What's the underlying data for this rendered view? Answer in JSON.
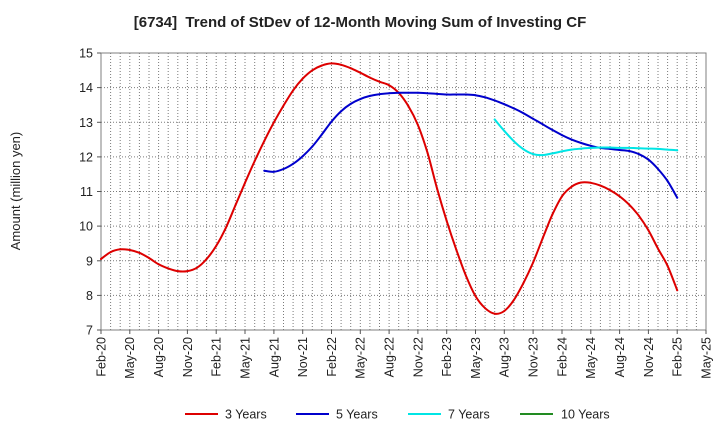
{
  "chart_data": {
    "type": "line",
    "title": "[6734]  Trend of StDev of 12-Month Moving Sum of Investing CF",
    "ylabel": "Amount (million yen)",
    "ylim": [
      7,
      15
    ],
    "yticks": [
      7,
      8,
      9,
      10,
      11,
      12,
      13,
      14,
      15
    ],
    "xlim": [
      "Feb-20",
      "May-25"
    ],
    "xticks": [
      "Feb-20",
      "May-20",
      "Aug-20",
      "Nov-20",
      "Feb-21",
      "May-21",
      "Aug-21",
      "Nov-21",
      "Feb-22",
      "May-22",
      "Aug-22",
      "Nov-22",
      "Feb-23",
      "May-23",
      "Aug-23",
      "Nov-23",
      "Feb-24",
      "May-24",
      "Aug-24",
      "Nov-24",
      "Feb-25",
      "May-25"
    ],
    "grid": true,
    "legend_position": "bottom",
    "series": [
      {
        "name": "3 Years",
        "color": "#dd0000",
        "x": [
          "Feb-20",
          "Mar-20",
          "Apr-20",
          "May-20",
          "Jun-20",
          "Jul-20",
          "Aug-20",
          "Sep-20",
          "Oct-20",
          "Nov-20",
          "Dec-20",
          "Jan-21",
          "Feb-21",
          "Mar-21",
          "Apr-21",
          "May-21",
          "Jun-21",
          "Jul-21",
          "Aug-21",
          "Sep-21",
          "Oct-21",
          "Nov-21",
          "Dec-21",
          "Jan-22",
          "Feb-22",
          "Mar-22",
          "Apr-22",
          "May-22",
          "Jun-22",
          "Jul-22",
          "Aug-22",
          "Sep-22",
          "Oct-22",
          "Nov-22",
          "Dec-22",
          "Jan-23",
          "Feb-23",
          "Mar-23",
          "Apr-23",
          "May-23",
          "Jun-23",
          "Jul-23",
          "Aug-23",
          "Sep-23",
          "Oct-23",
          "Nov-23",
          "Dec-23",
          "Jan-24",
          "Feb-24",
          "Mar-24",
          "Apr-24",
          "May-24",
          "Jun-24",
          "Jul-24",
          "Aug-24",
          "Sep-24",
          "Oct-24",
          "Nov-24",
          "Dec-24",
          "Jan-25",
          "Feb-25"
        ],
        "values": [
          9.05,
          9.25,
          9.33,
          9.31,
          9.23,
          9.08,
          8.9,
          8.78,
          8.7,
          8.7,
          8.8,
          9.05,
          9.43,
          9.95,
          10.6,
          11.25,
          11.88,
          12.46,
          13.0,
          13.48,
          13.92,
          14.26,
          14.5,
          14.64,
          14.7,
          14.66,
          14.56,
          14.43,
          14.29,
          14.17,
          14.07,
          13.85,
          13.47,
          12.92,
          12.12,
          11.08,
          10.15,
          9.32,
          8.57,
          7.98,
          7.63,
          7.47,
          7.55,
          7.87,
          8.36,
          8.95,
          9.65,
          10.33,
          10.86,
          11.14,
          11.26,
          11.25,
          11.17,
          11.04,
          10.86,
          10.62,
          10.3,
          9.88,
          9.35,
          8.85,
          8.15
        ]
      },
      {
        "name": "5 Years",
        "color": "#0000cc",
        "x": [
          "Jul-21",
          "Aug-21",
          "Sep-21",
          "Oct-21",
          "Nov-21",
          "Dec-21",
          "Jan-22",
          "Feb-22",
          "Mar-22",
          "Apr-22",
          "May-22",
          "Jun-22",
          "Jul-22",
          "Aug-22",
          "Sep-22",
          "Oct-22",
          "Nov-22",
          "Dec-22",
          "Jan-23",
          "Feb-23",
          "Mar-23",
          "Apr-23",
          "May-23",
          "Jun-23",
          "Jul-23",
          "Aug-23",
          "Sep-23",
          "Oct-23",
          "Nov-23",
          "Dec-23",
          "Jan-24",
          "Feb-24",
          "Mar-24",
          "Apr-24",
          "May-24",
          "Jun-24",
          "Jul-24",
          "Aug-24",
          "Sep-24",
          "Oct-24",
          "Nov-24",
          "Dec-24",
          "Jan-25",
          "Feb-25"
        ],
        "values": [
          11.6,
          11.57,
          11.65,
          11.8,
          12.02,
          12.3,
          12.65,
          13.02,
          13.32,
          13.53,
          13.67,
          13.76,
          13.81,
          13.84,
          13.85,
          13.85,
          13.85,
          13.84,
          13.82,
          13.8,
          13.8,
          13.8,
          13.78,
          13.72,
          13.63,
          13.52,
          13.4,
          13.26,
          13.1,
          12.94,
          12.78,
          12.63,
          12.5,
          12.4,
          12.32,
          12.26,
          12.23,
          12.2,
          12.17,
          12.08,
          11.92,
          11.65,
          11.3,
          10.82
        ]
      },
      {
        "name": "7 Years",
        "color": "#00e5e5",
        "x": [
          "Jul-23",
          "Aug-23",
          "Sep-23",
          "Oct-23",
          "Nov-23",
          "Dec-23",
          "Jan-24",
          "Feb-24",
          "Mar-24",
          "Apr-24",
          "May-24",
          "Jun-24",
          "Jul-24",
          "Aug-24",
          "Sep-24",
          "Oct-24",
          "Nov-24",
          "Dec-24",
          "Jan-25",
          "Feb-25"
        ],
        "values": [
          13.08,
          12.75,
          12.45,
          12.22,
          12.08,
          12.05,
          12.1,
          12.16,
          12.21,
          12.24,
          12.26,
          12.27,
          12.27,
          12.26,
          12.26,
          12.25,
          12.24,
          12.23,
          12.21,
          12.19
        ]
      },
      {
        "name": "10 Years",
        "color": "#228b22",
        "x": [],
        "values": []
      }
    ]
  }
}
